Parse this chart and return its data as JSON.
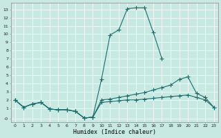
{
  "bg_color": "#c8e8e2",
  "line_color": "#1a6b6b",
  "xlabel": "Humidex (Indice chaleur)",
  "peak_x": [
    0,
    1,
    2,
    3,
    4,
    5,
    6,
    7,
    8,
    9,
    10,
    11,
    12,
    13,
    14,
    15,
    16,
    17
  ],
  "peak_y": [
    2.0,
    1.1,
    1.5,
    1.7,
    0.9,
    0.8,
    0.8,
    0.6,
    -0.2,
    -0.1,
    4.5,
    9.9,
    10.5,
    13.1,
    13.2,
    13.2,
    10.2,
    7.0
  ],
  "upper_x": [
    0,
    1,
    2,
    3,
    4,
    5,
    6,
    7,
    8,
    9,
    10,
    11,
    12,
    13,
    14,
    15,
    16,
    17,
    18,
    19,
    20,
    21,
    22,
    23
  ],
  "upper_y": [
    2.0,
    1.1,
    1.5,
    1.7,
    0.9,
    0.8,
    0.8,
    0.6,
    -0.2,
    -0.1,
    2.0,
    2.1,
    2.3,
    2.5,
    2.7,
    2.9,
    3.2,
    3.5,
    3.8,
    4.5,
    4.8,
    2.8,
    2.3,
    1.1
  ],
  "lower_x": [
    0,
    1,
    2,
    3,
    4,
    5,
    6,
    7,
    8,
    9,
    10,
    11,
    12,
    13,
    14,
    15,
    16,
    17,
    18,
    19,
    20,
    21,
    22,
    23
  ],
  "lower_y": [
    2.0,
    1.1,
    1.5,
    1.7,
    0.9,
    0.8,
    0.8,
    0.6,
    -0.2,
    -0.1,
    1.7,
    1.8,
    1.9,
    2.0,
    2.0,
    2.1,
    2.2,
    2.3,
    2.4,
    2.5,
    2.6,
    2.3,
    2.0,
    1.1
  ],
  "xlim": [
    -0.5,
    23.5
  ],
  "ylim": [
    -0.7,
    13.8
  ],
  "xticks": [
    0,
    1,
    2,
    3,
    4,
    5,
    6,
    7,
    8,
    9,
    10,
    11,
    12,
    13,
    14,
    15,
    16,
    17,
    18,
    19,
    20,
    21,
    22,
    23
  ],
  "ytick_vals": [
    -0.3,
    1,
    2,
    3,
    4,
    5,
    6,
    7,
    8,
    9,
    10,
    11,
    12,
    13
  ],
  "ytick_labels": [
    "-0",
    "1",
    "2",
    "3",
    "4",
    "5",
    "6",
    "7",
    "8",
    "9",
    "10",
    "11",
    "12",
    "13"
  ]
}
